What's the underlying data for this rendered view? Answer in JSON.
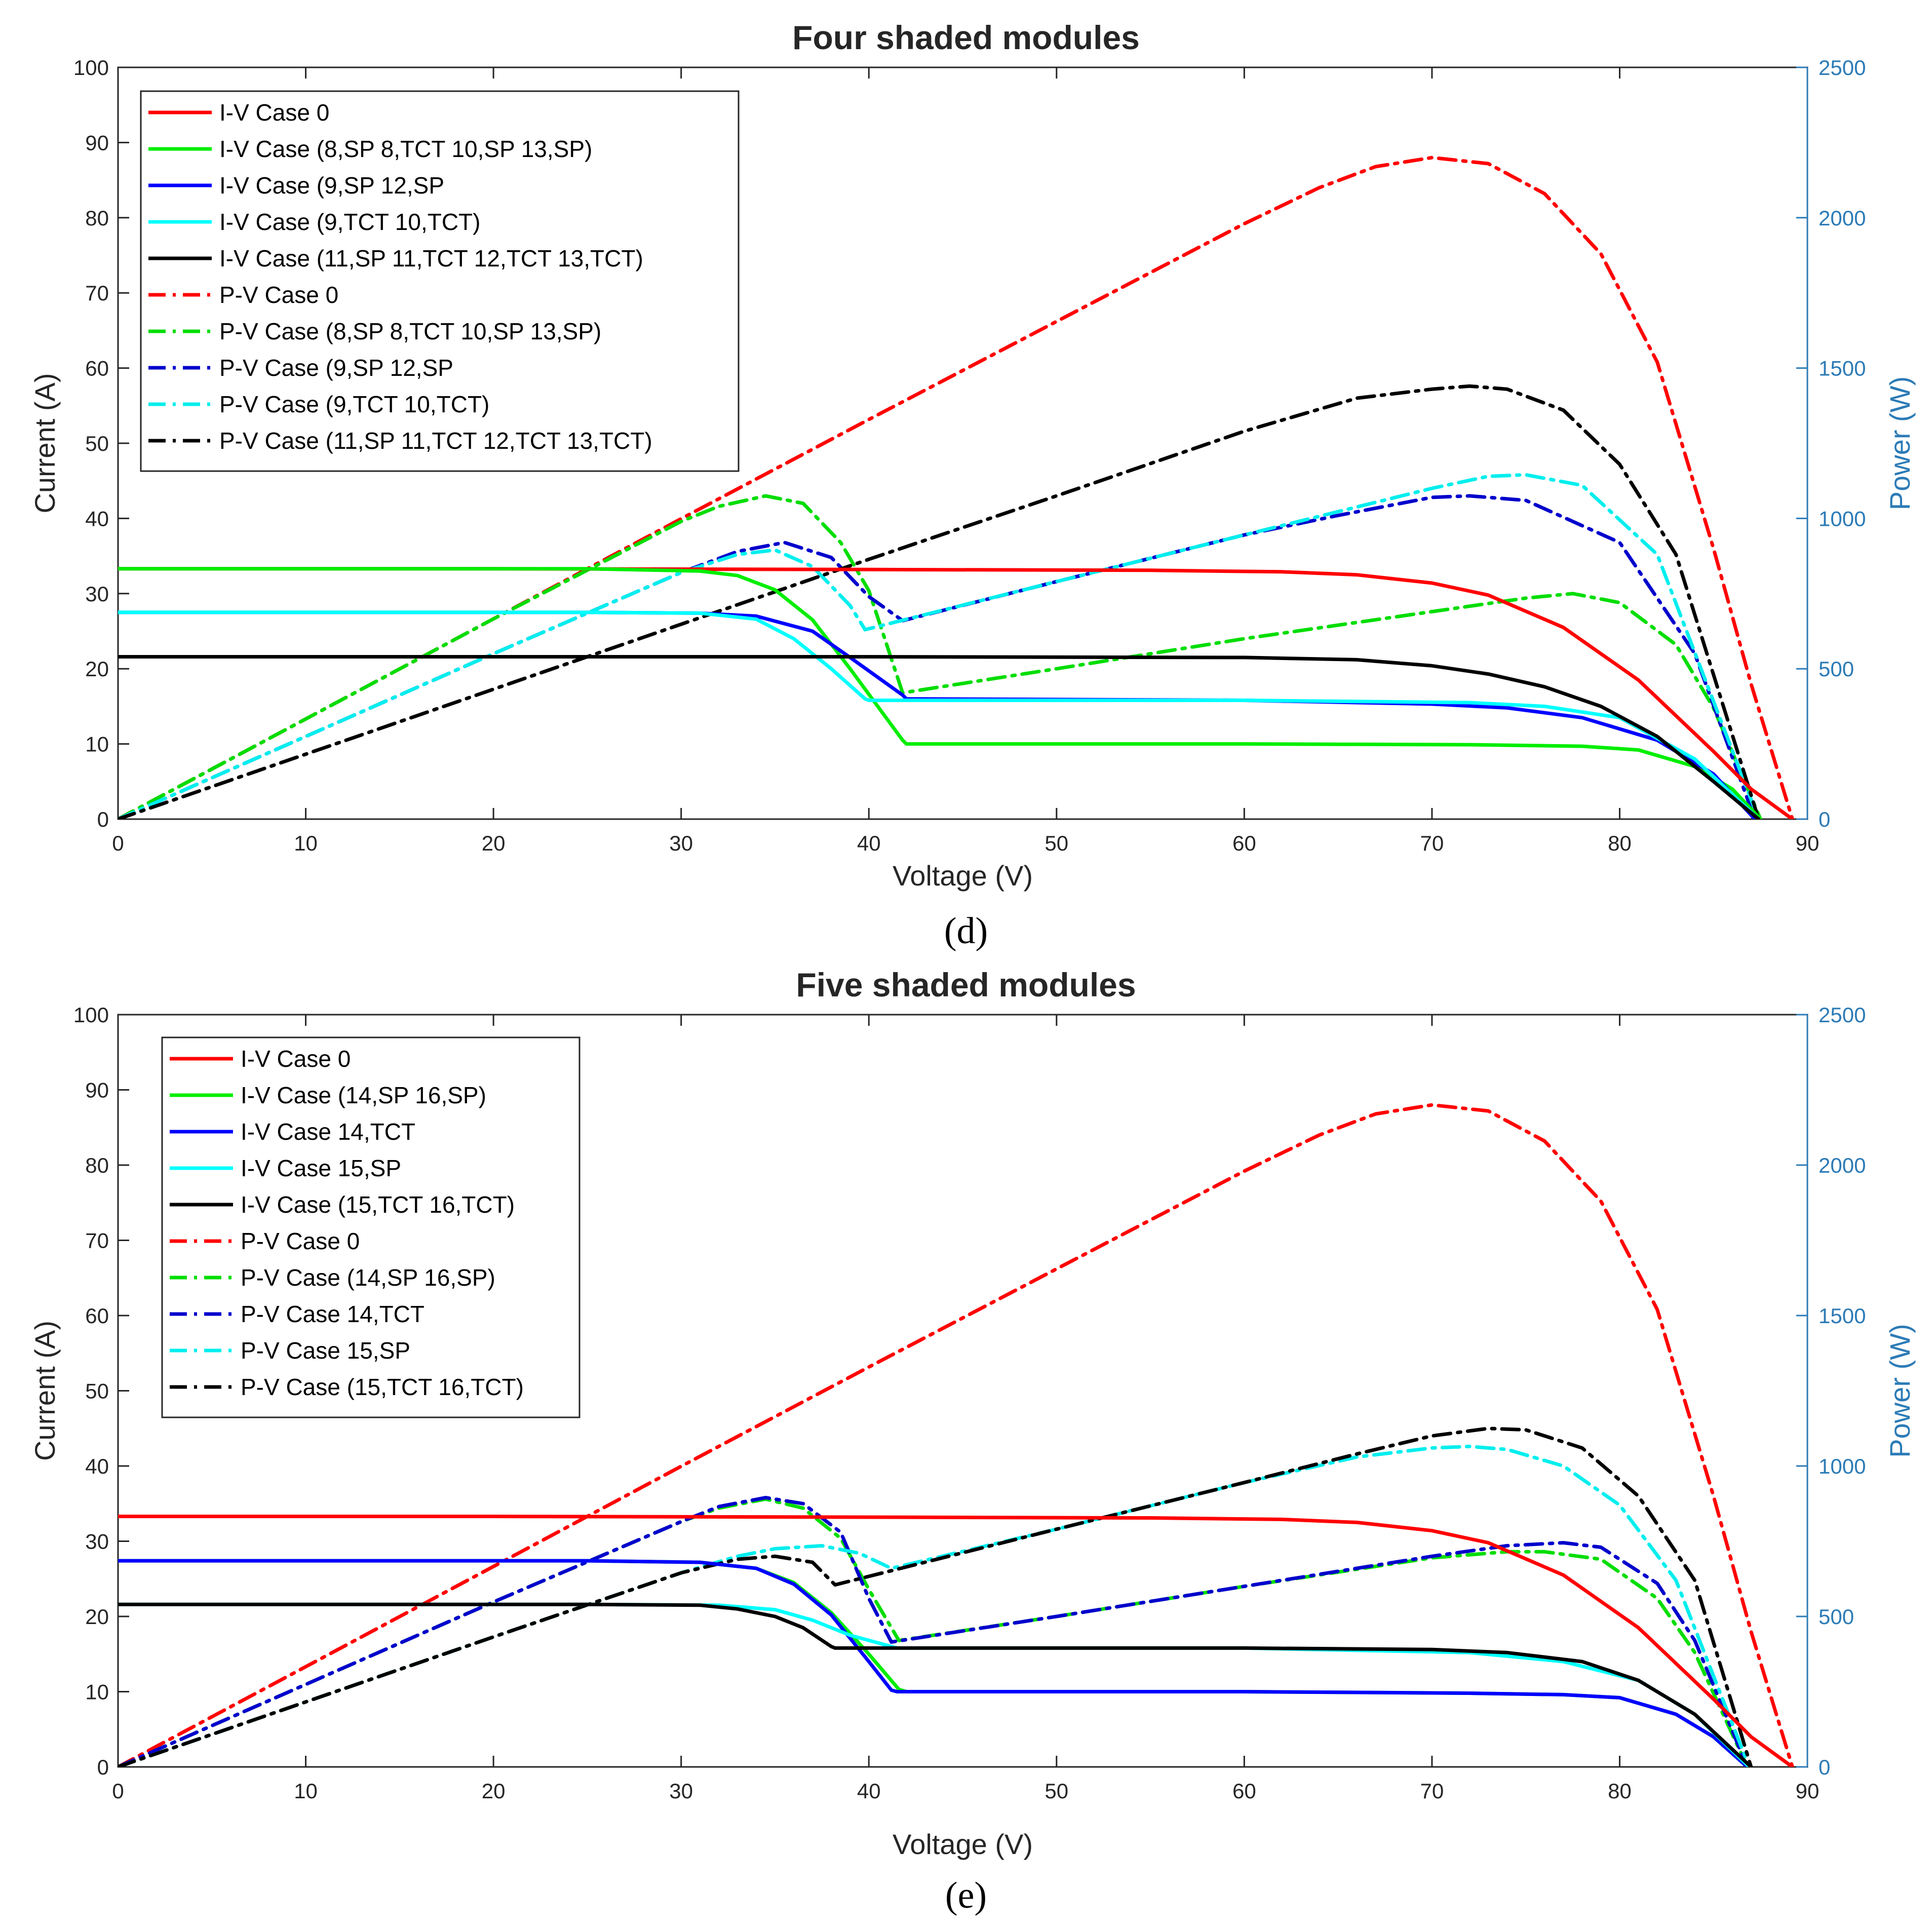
{
  "chart_data": [
    {
      "type": "line",
      "title": "Four shaded modules",
      "panel_label": "(d)",
      "xlabel": "Voltage (V)",
      "ylabel": "Current (A)",
      "y2label": "Power (W)",
      "xlim": [
        0,
        90
      ],
      "ylim": [
        0,
        100
      ],
      "y2lim": [
        0,
        2500
      ],
      "xticks": [
        0,
        10,
        20,
        30,
        40,
        50,
        60,
        70,
        80,
        90
      ],
      "yticks": [
        0,
        10,
        20,
        30,
        40,
        50,
        60,
        70,
        80,
        90,
        100
      ],
      "y2ticks": [
        0,
        500,
        1000,
        1500,
        2000,
        2500
      ],
      "legend_position": "top-left",
      "series": [
        {
          "name": "I-V Case 0",
          "axis": "left",
          "color": "#ff0000",
          "style": "solid",
          "x": [
            0,
            20,
            40,
            55,
            62,
            66,
            70,
            73,
            77,
            81,
            85,
            87,
            89.2
          ],
          "y": [
            33.3,
            33.3,
            33.2,
            33.1,
            32.9,
            32.5,
            31.4,
            29.8,
            25.5,
            18.5,
            9,
            4,
            0
          ]
        },
        {
          "name": "I-V Case (8,SP 8,TCT 10,SP 13,SP)",
          "axis": "left",
          "color": "#00ee00",
          "style": "solid",
          "x": [
            0,
            25,
            31,
            33,
            35,
            37,
            39,
            41.8,
            42,
            60,
            72,
            78,
            81,
            84,
            86,
            87.5
          ],
          "y": [
            33.3,
            33.3,
            33.0,
            32.4,
            30.5,
            26.5,
            20,
            10.5,
            10,
            10,
            9.9,
            9.7,
            9.2,
            7,
            4,
            0
          ]
        },
        {
          "name": "I-V Case (9,SP 12,SP",
          "axis": "left",
          "color": "#0000ff",
          "style": "solid",
          "x": [
            0,
            25,
            31,
            34,
            37,
            39,
            41.8,
            42,
            60,
            70,
            74,
            78,
            82,
            85,
            87.2
          ],
          "y": [
            27.5,
            27.5,
            27.4,
            27.0,
            25,
            21.5,
            16.5,
            16,
            15.8,
            15.3,
            14.8,
            13.5,
            10.5,
            6,
            0
          ]
        },
        {
          "name": "I-V Case (9,TCT 10,TCT)",
          "axis": "left",
          "color": "#00ffff",
          "style": "solid",
          "x": [
            0,
            25,
            31,
            34,
            36,
            38,
            39.8,
            40,
            60,
            72,
            76,
            80,
            84,
            87.4
          ],
          "y": [
            27.5,
            27.5,
            27.4,
            26.6,
            24,
            20,
            16,
            15.8,
            15.8,
            15.5,
            15,
            13.5,
            8,
            0
          ]
        },
        {
          "name": "I-V Case (11,SP 11,TCT 12,TCT 13,TCT)",
          "axis": "left",
          "color": "#000000",
          "style": "solid",
          "x": [
            0,
            40,
            60,
            66,
            70,
            73,
            76,
            79,
            82,
            85,
            87.4
          ],
          "y": [
            21.6,
            21.6,
            21.5,
            21.2,
            20.4,
            19.3,
            17.6,
            15,
            11,
            5,
            0
          ]
        },
        {
          "name": "P-V Case 0",
          "axis": "right",
          "color": "#ff0000",
          "style": "dashdot",
          "x": [
            0,
            10,
            20,
            30,
            40,
            50,
            60,
            64,
            67,
            70,
            73,
            76,
            79,
            82,
            85,
            87,
            89.2
          ],
          "y": [
            0,
            333,
            666,
            999,
            1329,
            1655,
            1980,
            2100,
            2170,
            2200,
            2180,
            2080,
            1880,
            1520,
            900,
            450,
            0
          ]
        },
        {
          "name": "P-V Case (8,SP 8,TCT 10,SP 13,SP)",
          "axis": "right",
          "color": "#00dd00",
          "style": "dashdot",
          "x": [
            0,
            10,
            20,
            30,
            32,
            34.5,
            36.5,
            38.5,
            40,
            41.8,
            50,
            60,
            70,
            75,
            77.5,
            80,
            83,
            85,
            87.5
          ],
          "y": [
            0,
            333,
            666,
            990,
            1040,
            1075,
            1050,
            920,
            760,
            420,
            500,
            600,
            690,
            735,
            750,
            720,
            580,
            370,
            0
          ]
        },
        {
          "name": "P-V Case (9,SP 12,SP",
          "axis": "right",
          "color": "#0000cc",
          "style": "dashdot",
          "x": [
            0,
            10,
            20,
            30,
            33,
            35.5,
            38,
            40,
            41.8,
            50,
            60,
            65,
            70,
            72,
            75,
            80,
            84,
            87.2
          ],
          "y": [
            0,
            275,
            550,
            820,
            890,
            920,
            870,
            740,
            660,
            790,
            945,
            1010,
            1070,
            1075,
            1060,
            920,
            550,
            0
          ]
        },
        {
          "name": "P-V Case (9,TCT 10,TCT)",
          "axis": "right",
          "color": "#00eeee",
          "style": "dashdot",
          "x": [
            0,
            10,
            20,
            30,
            33,
            35,
            37,
            39,
            39.8,
            50,
            60,
            70,
            73,
            75,
            78,
            82,
            87.4
          ],
          "y": [
            0,
            275,
            550,
            820,
            880,
            895,
            840,
            710,
            630,
            790,
            945,
            1100,
            1140,
            1145,
            1110,
            880,
            0
          ]
        },
        {
          "name": "P-V Case (11,SP 11,TCT 12,TCT 13,TCT)",
          "axis": "right",
          "color": "#000000",
          "style": "dashdot",
          "x": [
            0,
            10,
            20,
            30,
            40,
            50,
            60,
            66,
            70,
            72,
            74,
            77,
            80,
            83,
            87.4
          ],
          "y": [
            0,
            216,
            432,
            648,
            864,
            1075,
            1290,
            1400,
            1430,
            1440,
            1430,
            1360,
            1180,
            880,
            0
          ]
        }
      ]
    },
    {
      "type": "line",
      "title": "Five shaded modules",
      "panel_label": "(e)",
      "xlabel": "Voltage (V)",
      "ylabel": "Current (A)",
      "y2label": "Power (W)",
      "xlim": [
        0,
        90
      ],
      "ylim": [
        0,
        100
      ],
      "y2lim": [
        0,
        2500
      ],
      "xticks": [
        0,
        10,
        20,
        30,
        40,
        50,
        60,
        70,
        80,
        90
      ],
      "yticks": [
        0,
        10,
        20,
        30,
        40,
        50,
        60,
        70,
        80,
        90,
        100
      ],
      "y2ticks": [
        0,
        500,
        1000,
        1500,
        2000,
        2500
      ],
      "legend_position": "top-left",
      "series": [
        {
          "name": "I-V Case 0",
          "axis": "left",
          "color": "#ff0000",
          "style": "solid",
          "x": [
            0,
            20,
            40,
            55,
            62,
            66,
            70,
            73,
            77,
            81,
            85,
            87,
            89.2
          ],
          "y": [
            33.3,
            33.3,
            33.2,
            33.1,
            32.9,
            32.5,
            31.4,
            29.8,
            25.5,
            18.5,
            9,
            4,
            0
          ]
        },
        {
          "name": "I-V Case (14,SP 16,SP)",
          "axis": "left",
          "color": "#00ee00",
          "style": "solid",
          "x": [
            0,
            25,
            31,
            34,
            36,
            38,
            40,
            41.6,
            42,
            60,
            72,
            77,
            80,
            83,
            85,
            86.8
          ],
          "y": [
            27.4,
            27.4,
            27.2,
            26.4,
            24.5,
            20.5,
            15,
            10.3,
            10,
            10,
            9.8,
            9.6,
            9.2,
            7,
            4,
            0
          ]
        },
        {
          "name": "I-V Case 14,TCT",
          "axis": "left",
          "color": "#0000ff",
          "style": "solid",
          "x": [
            0,
            25,
            31,
            34,
            36,
            38,
            40,
            41.2,
            41.5,
            60,
            72,
            77,
            80,
            83,
            85,
            86.8
          ],
          "y": [
            27.4,
            27.4,
            27.2,
            26.4,
            24.3,
            20.2,
            14,
            10.2,
            10,
            10,
            9.8,
            9.6,
            9.2,
            7,
            4,
            0
          ]
        },
        {
          "name": "I-V Case 15,SP",
          "axis": "left",
          "color": "#00ffff",
          "style": "solid",
          "x": [
            0,
            25,
            32,
            35,
            37,
            39,
            41.2,
            41.5,
            60,
            72,
            77,
            81,
            84,
            86.9
          ],
          "y": [
            21.6,
            21.6,
            21.5,
            20.9,
            19.5,
            17.5,
            16,
            15.8,
            15.8,
            15.2,
            14,
            11.5,
            7,
            0
          ]
        },
        {
          "name": "I-V Case (15,TCT 16,TCT)",
          "axis": "left",
          "color": "#000000",
          "style": "solid",
          "x": [
            0,
            25,
            31,
            33,
            35,
            36.5,
            38,
            38.2,
            60,
            70,
            74,
            78,
            81,
            84,
            87
          ],
          "y": [
            21.6,
            21.6,
            21.5,
            21.0,
            20,
            18.5,
            16,
            15.8,
            15.8,
            15.6,
            15.2,
            14,
            11.5,
            7,
            0
          ]
        },
        {
          "name": "P-V Case 0",
          "axis": "right",
          "color": "#ff0000",
          "style": "dashdot",
          "x": [
            0,
            10,
            20,
            30,
            40,
            50,
            60,
            64,
            67,
            70,
            73,
            76,
            79,
            82,
            85,
            87,
            89.2
          ],
          "y": [
            0,
            333,
            666,
            999,
            1329,
            1655,
            1980,
            2100,
            2170,
            2200,
            2180,
            2080,
            1880,
            1520,
            900,
            450,
            0
          ]
        },
        {
          "name": "P-V Case (14,SP 16,SP)",
          "axis": "right",
          "color": "#00dd00",
          "style": "dashdot",
          "x": [
            0,
            10,
            20,
            30,
            32,
            34.5,
            36.5,
            38.5,
            40,
            41.6,
            50,
            60,
            70,
            74,
            76,
            79,
            82,
            84,
            86.8
          ],
          "y": [
            0,
            274,
            548,
            815,
            860,
            890,
            860,
            760,
            590,
            420,
            500,
            600,
            695,
            715,
            715,
            690,
            560,
            380,
            0
          ]
        },
        {
          "name": "P-V Case 14,TCT",
          "axis": "right",
          "color": "#0000cc",
          "style": "dashdot",
          "x": [
            0,
            10,
            20,
            30,
            32,
            34.5,
            36.5,
            38.5,
            40,
            41.2,
            50,
            60,
            70,
            74,
            77,
            79,
            82,
            84,
            86.8
          ],
          "y": [
            0,
            274,
            548,
            815,
            865,
            895,
            875,
            780,
            560,
            415,
            500,
            600,
            700,
            735,
            745,
            730,
            610,
            420,
            0
          ]
        },
        {
          "name": "P-V Case 15,SP",
          "axis": "right",
          "color": "#00eeee",
          "style": "dashdot",
          "x": [
            0,
            10,
            20,
            30,
            33,
            35,
            37.5,
            39.5,
            41.2,
            50,
            60,
            66,
            70,
            72,
            74,
            77,
            80,
            83,
            86.9
          ],
          "y": [
            0,
            216,
            432,
            645,
            700,
            725,
            735,
            710,
            660,
            790,
            945,
            1030,
            1060,
            1065,
            1055,
            1000,
            870,
            620,
            0
          ]
        },
        {
          "name": "P-V Case (15,TCT 16,TCT)",
          "axis": "right",
          "color": "#000000",
          "style": "dashdot",
          "x": [
            0,
            10,
            20,
            30,
            33,
            35,
            37,
            38.2,
            50,
            60,
            66,
            70,
            73,
            75,
            78,
            81,
            84,
            87
          ],
          "y": [
            0,
            216,
            432,
            645,
            690,
            700,
            680,
            605,
            790,
            945,
            1040,
            1100,
            1125,
            1120,
            1060,
            900,
            620,
            0
          ]
        }
      ]
    }
  ]
}
